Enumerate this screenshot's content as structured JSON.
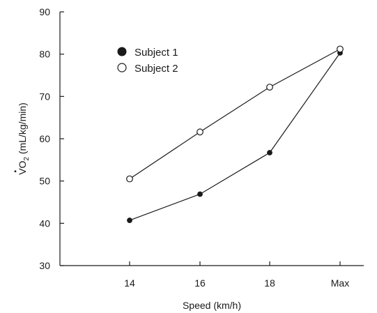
{
  "chart_data": {
    "type": "line",
    "title": "",
    "xlabel": "Speed (km/h)",
    "ylabel": {
      "dot_letter": "V",
      "main": "O",
      "subscript": "2",
      "unit": " (mL/kg/min)"
    },
    "categories": [
      "14",
      "16",
      "18",
      "Max"
    ],
    "ylim": [
      30,
      90
    ],
    "yticks": [
      30,
      40,
      50,
      60,
      70,
      80,
      90
    ],
    "grid": false,
    "legend_position": "top-left",
    "series": [
      {
        "name": "Subject 1",
        "marker": "filled-circle",
        "values": [
          40.7,
          46.9,
          56.7,
          80.3
        ]
      },
      {
        "name": "Subject 2",
        "marker": "open-circle",
        "values": [
          50.5,
          61.6,
          72.2,
          81.2
        ]
      }
    ]
  }
}
